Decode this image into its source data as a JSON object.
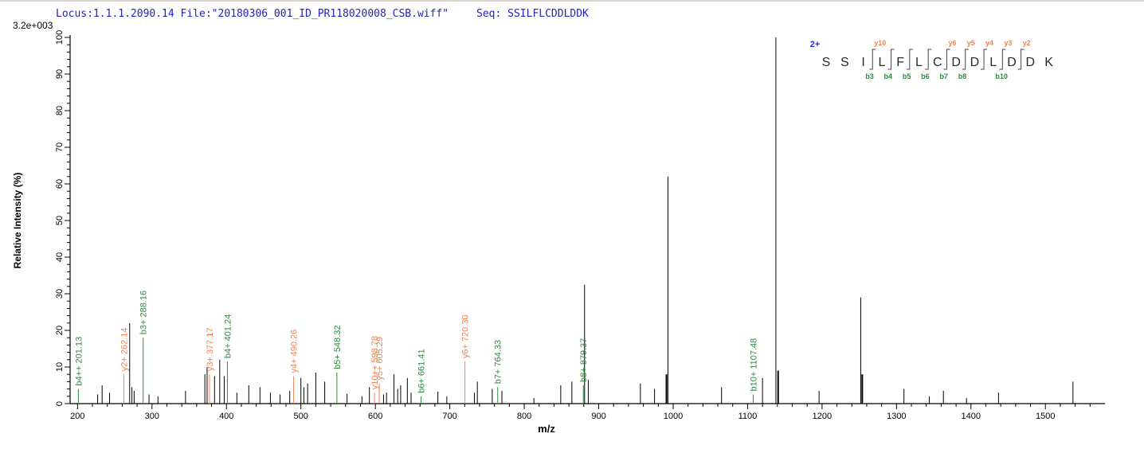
{
  "header": {
    "locus_line": "Locus:1.1.1.2090.14 File:\"20180306_001_ID_PR118020008_CSB.wiff\"",
    "seq_line": "Seq: SSILFLCDDLDDK",
    "intensity_scale": "3.2e+003"
  },
  "colors": {
    "header_blue": "#2323c0",
    "charge_blue": "#2a2ae0",
    "b_ion_green": "#2e8b3d",
    "y_ion_orange": "#ef8252",
    "peak_black": "#000000",
    "residue_text": "#2b2b2b"
  },
  "precursor": {
    "charge": "2+"
  },
  "sequence": {
    "residues": [
      "S",
      "S",
      "I",
      "L",
      "F",
      "L",
      "C",
      "D",
      "D",
      "L",
      "D",
      "D",
      "K"
    ],
    "fragments": [
      {
        "after": 2,
        "y": "y10",
        "b": "b3"
      },
      {
        "after": 3,
        "b": "b4"
      },
      {
        "after": 4,
        "b": "b5"
      },
      {
        "after": 5,
        "b": "b6"
      },
      {
        "after": 6,
        "y": "y6",
        "b": "b7"
      },
      {
        "after": 7,
        "y": "y5",
        "b": "b8"
      },
      {
        "after": 8,
        "y": "y4"
      },
      {
        "after": 9,
        "y": "y3",
        "b": "b10"
      },
      {
        "after": 10,
        "y": "y2"
      }
    ]
  },
  "chart_data": {
    "type": "bar",
    "subtype": "ms2-stick-spectrum",
    "title": "",
    "xlabel": "m/z",
    "ylabel": "Relative  Intensity (%)",
    "xlim": [
      190,
      1580
    ],
    "ylim": [
      0,
      100
    ],
    "grid": false,
    "x_major_tick_step": 100,
    "x_minor_tick_step": 20,
    "y_major_tick_step": 10,
    "y_minor_tick_step": 2,
    "x_tick_labels": [
      200,
      300,
      400,
      500,
      600,
      700,
      800,
      900,
      1000,
      1100,
      1200,
      1300,
      1400,
      1500
    ],
    "y_tick_labels": [
      0,
      10,
      20,
      30,
      40,
      50,
      60,
      70,
      80,
      90,
      100
    ],
    "series": [
      {
        "name": "b-ions",
        "color": "#2e8b3d",
        "peaks": [
          {
            "ion": "b4++",
            "mz": "201.13",
            "i": 4
          },
          {
            "ion": "b3+",
            "mz": "288.16",
            "i": 18
          },
          {
            "ion": "b4+",
            "mz": "401.24",
            "i": 11.5
          },
          {
            "ion": "b5+",
            "mz": "548.32",
            "i": 8.5
          },
          {
            "ion": "b6+",
            "mz": "661.41",
            "i": 2
          },
          {
            "ion": "b7+",
            "mz": "764.33",
            "i": 4.5
          },
          {
            "ion": "b8+",
            "mz": "879.37",
            "i": 5
          },
          {
            "ion": "b10+",
            "mz": "1107.48",
            "i": 2.5
          }
        ]
      },
      {
        "name": "y-ions",
        "color": "#ef8252",
        "peaks": [
          {
            "ion": "y2+",
            "mz": "262.14",
            "i": 8
          },
          {
            "ion": "y3+",
            "mz": "377.17",
            "i": 8
          },
          {
            "ion": "y4+",
            "mz": "490.26",
            "i": 7.5
          },
          {
            "ion": "y10++",
            "mz": "598.78",
            "i": 3
          },
          {
            "ion": "y5+",
            "mz": "605.29",
            "i": 5.5
          },
          {
            "ion": "y6+",
            "mz": "720.30",
            "i": 11.5
          }
        ]
      },
      {
        "name": "unassigned",
        "color": "#000000",
        "peaks": [
          {
            "mz": "227",
            "i": 2.5
          },
          {
            "mz": "233",
            "i": 5
          },
          {
            "mz": "243",
            "i": 3
          },
          {
            "mz": "270",
            "i": 22
          },
          {
            "mz": "273",
            "i": 4.5
          },
          {
            "mz": "276",
            "i": 3.5
          },
          {
            "mz": "296",
            "i": 2.5
          },
          {
            "mz": "308",
            "i": 2
          },
          {
            "mz": "345",
            "i": 3.5
          },
          {
            "mz": "371",
            "i": 8
          },
          {
            "mz": "374",
            "i": 10
          },
          {
            "mz": "384",
            "i": 7.5
          },
          {
            "mz": "391",
            "i": 12
          },
          {
            "mz": "397",
            "i": 7.5
          },
          {
            "mz": "414",
            "i": 3
          },
          {
            "mz": "430",
            "i": 5
          },
          {
            "mz": "445",
            "i": 4.5
          },
          {
            "mz": "459",
            "i": 3
          },
          {
            "mz": "472",
            "i": 2.5
          },
          {
            "mz": "485",
            "i": 3.5
          },
          {
            "mz": "500",
            "i": 7
          },
          {
            "mz": "504",
            "i": 4.5
          },
          {
            "mz": "509",
            "i": 5.5
          },
          {
            "mz": "520",
            "i": 8.5
          },
          {
            "mz": "532",
            "i": 6
          },
          {
            "mz": "562",
            "i": 2.7
          },
          {
            "mz": "582",
            "i": 2
          },
          {
            "mz": "592",
            "i": 4.5
          },
          {
            "mz": "611",
            "i": 2.5
          },
          {
            "mz": "615",
            "i": 3
          },
          {
            "mz": "625",
            "i": 8
          },
          {
            "mz": "630",
            "i": 4
          },
          {
            "mz": "634",
            "i": 5
          },
          {
            "mz": "643",
            "i": 7
          },
          {
            "mz": "648",
            "i": 3
          },
          {
            "mz": "684",
            "i": 3.3
          },
          {
            "mz": "696",
            "i": 2
          },
          {
            "mz": "733",
            "i": 3
          },
          {
            "mz": "737",
            "i": 6
          },
          {
            "mz": "757",
            "i": 4
          },
          {
            "mz": "770",
            "i": 3.5
          },
          {
            "mz": "813",
            "i": 1.5
          },
          {
            "mz": "849",
            "i": 5
          },
          {
            "mz": "864",
            "i": 6
          },
          {
            "mz": "881",
            "i": 32.5
          },
          {
            "mz": "886",
            "i": 6.5
          },
          {
            "mz": "956",
            "i": 5.5
          },
          {
            "mz": "975",
            "i": 4
          },
          {
            "mz": "991",
            "i": 8,
            "w": 2
          },
          {
            "mz": "993",
            "i": 62
          },
          {
            "mz": "1065",
            "i": 4.5
          },
          {
            "mz": "1120",
            "i": 7
          },
          {
            "mz": "1138",
            "i": 100
          },
          {
            "mz": "1141",
            "i": 9,
            "w": 2
          },
          {
            "mz": "1196",
            "i": 3.5
          },
          {
            "mz": "1252",
            "i": 29
          },
          {
            "mz": "1254",
            "i": 8,
            "w": 2
          },
          {
            "mz": "1310",
            "i": 4
          },
          {
            "mz": "1344",
            "i": 2
          },
          {
            "mz": "1363",
            "i": 3.5
          },
          {
            "mz": "1394",
            "i": 1.5
          },
          {
            "mz": "1437",
            "i": 3
          },
          {
            "mz": "1537",
            "i": 6
          }
        ]
      }
    ]
  }
}
